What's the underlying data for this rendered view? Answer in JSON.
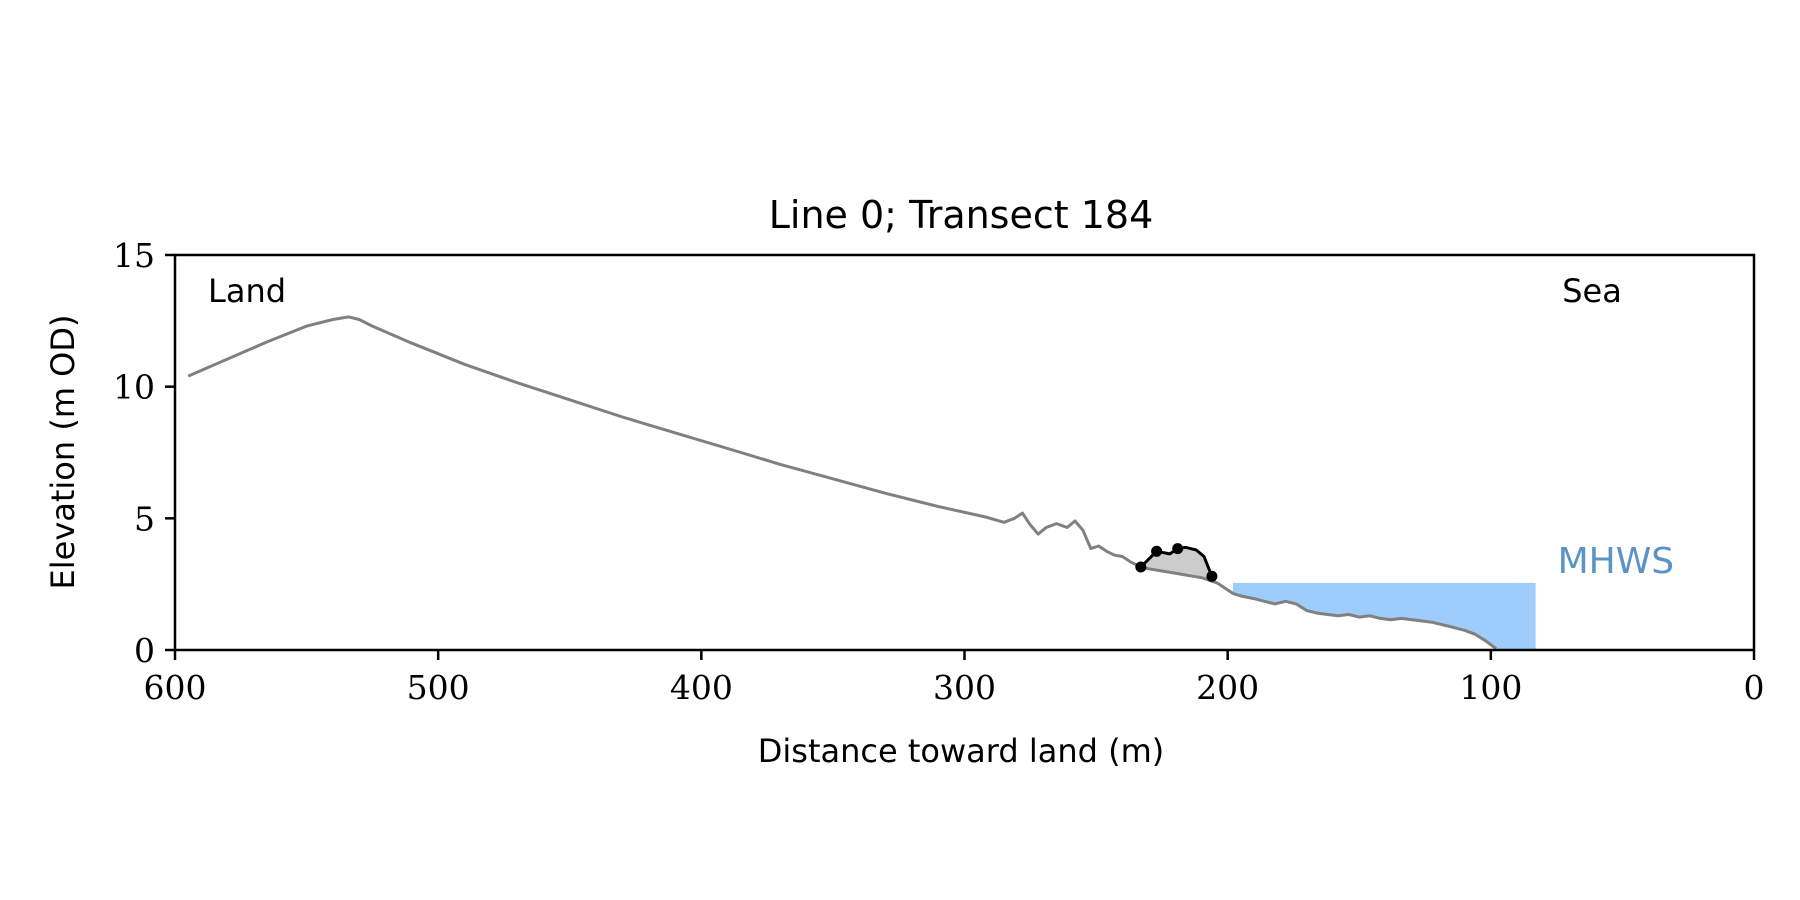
{
  "chart_data": {
    "type": "line",
    "title": "Line 0; Transect 184",
    "xlabel": "Distance toward land (m)",
    "ylabel": "Elevation (m OD)",
    "xlim": [
      600,
      0
    ],
    "ylim": [
      0,
      15
    ],
    "x_ticks": [
      600,
      500,
      400,
      300,
      200,
      100,
      0
    ],
    "y_ticks": [
      0,
      5,
      10,
      15
    ],
    "grid": false,
    "annotations": {
      "land": "Land",
      "sea": "Sea",
      "mhws": "MHWS"
    },
    "mhws": {
      "level": 2.55,
      "x_start": 198,
      "x_end": 83
    },
    "colors": {
      "profile": "#808080",
      "feature": "#000000",
      "feature_fill": "#cccccc",
      "water": "#9ecdfc",
      "mhws_label": "#5b93c7",
      "axes": "#000000"
    },
    "series": [
      {
        "role": "profile",
        "x": [
          595,
          580,
          565,
          550,
          540,
          534,
          530,
          525,
          510,
          490,
          470,
          450,
          430,
          410,
          390,
          370,
          350,
          330,
          310,
          292,
          285,
          281,
          278,
          275,
          272,
          269,
          265,
          261,
          258,
          255,
          252,
          249,
          246,
          243,
          240,
          237,
          234,
          231,
          228,
          225,
          222,
          219,
          216,
          213,
          210,
          207,
          204,
          201,
          198,
          195,
          190,
          186,
          182,
          178,
          174,
          170,
          166,
          162,
          158,
          154,
          150,
          146,
          142,
          138,
          134,
          130,
          126,
          122,
          118,
          114,
          110,
          106,
          102,
          98
        ],
        "y": [
          10.4,
          11.05,
          11.7,
          12.3,
          12.55,
          12.65,
          12.55,
          12.3,
          11.65,
          10.85,
          10.15,
          9.5,
          8.85,
          8.25,
          7.65,
          7.05,
          6.5,
          5.95,
          5.45,
          5.05,
          4.85,
          5.0,
          5.2,
          4.75,
          4.4,
          4.65,
          4.8,
          4.65,
          4.9,
          4.55,
          3.85,
          3.95,
          3.75,
          3.6,
          3.55,
          3.35,
          3.2,
          3.1,
          3.05,
          3.0,
          2.95,
          2.9,
          2.85,
          2.8,
          2.75,
          2.65,
          2.55,
          2.35,
          2.15,
          2.05,
          1.95,
          1.85,
          1.75,
          1.85,
          1.75,
          1.5,
          1.4,
          1.35,
          1.3,
          1.35,
          1.25,
          1.3,
          1.2,
          1.15,
          1.2,
          1.15,
          1.1,
          1.05,
          0.95,
          0.85,
          0.75,
          0.6,
          0.35,
          0.05
        ]
      },
      {
        "role": "feature",
        "x": [
          233,
          227,
          222,
          219,
          216,
          212,
          209,
          206
        ],
        "y": [
          3.15,
          3.75,
          3.65,
          3.85,
          3.9,
          3.8,
          3.55,
          2.8
        ]
      }
    ],
    "feature_points": {
      "x": [
        233,
        227,
        219,
        206
      ],
      "y": [
        3.15,
        3.75,
        3.85,
        2.8
      ]
    }
  }
}
